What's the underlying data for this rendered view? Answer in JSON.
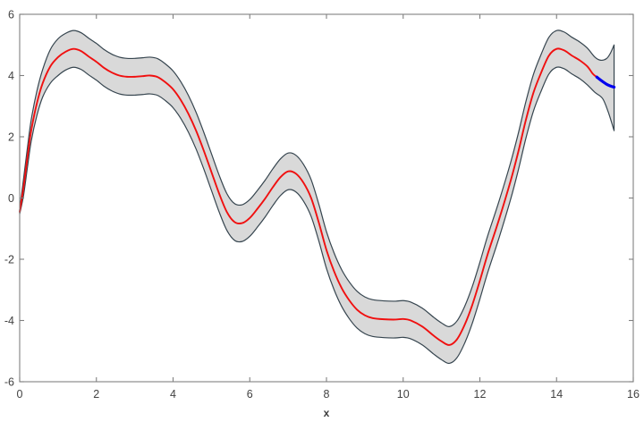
{
  "chart_data": {
    "type": "line",
    "title": "",
    "xlabel": "x",
    "ylabel": "",
    "xlim": [
      0,
      16
    ],
    "ylim": [
      -6,
      6
    ],
    "x_ticks": [
      0,
      2,
      4,
      6,
      8,
      10,
      12,
      14,
      16
    ],
    "y_ticks": [
      -6,
      -4,
      -2,
      0,
      2,
      4,
      6
    ],
    "grid": false,
    "legend": null,
    "colors": {
      "mean_line": "#f01010",
      "forecast_line": "#0000ee",
      "band_fill": "#d9d9d9",
      "band_edge": "#36454f",
      "axis_box": "#808080",
      "tick_label": "#424242",
      "background": "#ffffff"
    },
    "series": [
      {
        "name": "mean-prediction",
        "points": [
          [
            0,
            -0.45
          ],
          [
            0.1,
            0.35
          ],
          [
            0.2,
            1.3
          ],
          [
            0.3,
            2.2
          ],
          [
            0.45,
            3.1
          ],
          [
            0.6,
            3.75
          ],
          [
            0.8,
            4.3
          ],
          [
            1.0,
            4.6
          ],
          [
            1.2,
            4.78
          ],
          [
            1.4,
            4.87
          ],
          [
            1.6,
            4.8
          ],
          [
            1.8,
            4.62
          ],
          [
            2.0,
            4.45
          ],
          [
            2.2,
            4.25
          ],
          [
            2.4,
            4.1
          ],
          [
            2.6,
            4.0
          ],
          [
            2.8,
            3.96
          ],
          [
            3.0,
            3.96
          ],
          [
            3.2,
            3.98
          ],
          [
            3.4,
            4.0
          ],
          [
            3.6,
            3.95
          ],
          [
            3.8,
            3.78
          ],
          [
            4.0,
            3.55
          ],
          [
            4.2,
            3.2
          ],
          [
            4.4,
            2.75
          ],
          [
            4.6,
            2.2
          ],
          [
            4.8,
            1.55
          ],
          [
            5.0,
            0.85
          ],
          [
            5.2,
            0.15
          ],
          [
            5.4,
            -0.45
          ],
          [
            5.6,
            -0.78
          ],
          [
            5.8,
            -0.82
          ],
          [
            6.0,
            -0.65
          ],
          [
            6.2,
            -0.35
          ],
          [
            6.4,
            -0.02
          ],
          [
            6.6,
            0.35
          ],
          [
            6.8,
            0.68
          ],
          [
            7.0,
            0.87
          ],
          [
            7.2,
            0.8
          ],
          [
            7.4,
            0.5
          ],
          [
            7.6,
            0.0
          ],
          [
            7.8,
            -0.8
          ],
          [
            8.0,
            -1.7
          ],
          [
            8.2,
            -2.4
          ],
          [
            8.4,
            -2.95
          ],
          [
            8.6,
            -3.35
          ],
          [
            8.8,
            -3.65
          ],
          [
            9.0,
            -3.83
          ],
          [
            9.2,
            -3.92
          ],
          [
            9.5,
            -3.96
          ],
          [
            9.8,
            -3.97
          ],
          [
            10.0,
            -3.95
          ],
          [
            10.2,
            -4.0
          ],
          [
            10.5,
            -4.2
          ],
          [
            10.8,
            -4.5
          ],
          [
            11.0,
            -4.68
          ],
          [
            11.2,
            -4.8
          ],
          [
            11.4,
            -4.62
          ],
          [
            11.6,
            -4.15
          ],
          [
            11.8,
            -3.5
          ],
          [
            12.0,
            -2.7
          ],
          [
            12.2,
            -1.85
          ],
          [
            12.5,
            -0.7
          ],
          [
            12.8,
            0.55
          ],
          [
            13.0,
            1.5
          ],
          [
            13.2,
            2.55
          ],
          [
            13.4,
            3.45
          ],
          [
            13.6,
            4.1
          ],
          [
            13.8,
            4.65
          ],
          [
            14.0,
            4.87
          ],
          [
            14.2,
            4.82
          ],
          [
            14.4,
            4.65
          ],
          [
            14.6,
            4.5
          ],
          [
            14.8,
            4.3
          ],
          [
            14.95,
            4.05
          ],
          [
            15.05,
            3.95
          ]
        ]
      },
      {
        "name": "extrapolation",
        "points": [
          [
            15.05,
            3.95
          ],
          [
            15.15,
            3.85
          ],
          [
            15.3,
            3.72
          ],
          [
            15.4,
            3.66
          ],
          [
            15.5,
            3.62
          ]
        ]
      }
    ],
    "band": {
      "name": "confidence-interval",
      "upper": [
        [
          0,
          -0.38
        ],
        [
          0.1,
          0.62
        ],
        [
          0.2,
          1.62
        ],
        [
          0.3,
          2.55
        ],
        [
          0.45,
          3.5
        ],
        [
          0.6,
          4.2
        ],
        [
          0.8,
          4.85
        ],
        [
          1.0,
          5.2
        ],
        [
          1.2,
          5.38
        ],
        [
          1.4,
          5.47
        ],
        [
          1.6,
          5.4
        ],
        [
          1.8,
          5.22
        ],
        [
          2.0,
          5.05
        ],
        [
          2.2,
          4.85
        ],
        [
          2.4,
          4.7
        ],
        [
          2.6,
          4.6
        ],
        [
          2.8,
          4.56
        ],
        [
          3.0,
          4.56
        ],
        [
          3.2,
          4.58
        ],
        [
          3.4,
          4.6
        ],
        [
          3.6,
          4.55
        ],
        [
          3.8,
          4.38
        ],
        [
          4.0,
          4.15
        ],
        [
          4.2,
          3.8
        ],
        [
          4.4,
          3.35
        ],
        [
          4.6,
          2.8
        ],
        [
          4.8,
          2.15
        ],
        [
          5.0,
          1.45
        ],
        [
          5.2,
          0.75
        ],
        [
          5.4,
          0.15
        ],
        [
          5.6,
          -0.18
        ],
        [
          5.8,
          -0.22
        ],
        [
          6.0,
          -0.05
        ],
        [
          6.2,
          0.25
        ],
        [
          6.4,
          0.58
        ],
        [
          6.6,
          0.95
        ],
        [
          6.8,
          1.28
        ],
        [
          7.0,
          1.47
        ],
        [
          7.2,
          1.4
        ],
        [
          7.4,
          1.1
        ],
        [
          7.6,
          0.6
        ],
        [
          7.8,
          -0.2
        ],
        [
          8.0,
          -1.1
        ],
        [
          8.2,
          -1.8
        ],
        [
          8.4,
          -2.35
        ],
        [
          8.6,
          -2.75
        ],
        [
          8.8,
          -3.05
        ],
        [
          9.0,
          -3.23
        ],
        [
          9.2,
          -3.32
        ],
        [
          9.5,
          -3.36
        ],
        [
          9.8,
          -3.37
        ],
        [
          10.0,
          -3.35
        ],
        [
          10.2,
          -3.4
        ],
        [
          10.5,
          -3.6
        ],
        [
          10.8,
          -3.9
        ],
        [
          11.0,
          -4.08
        ],
        [
          11.2,
          -4.2
        ],
        [
          11.4,
          -4.02
        ],
        [
          11.6,
          -3.55
        ],
        [
          11.8,
          -2.9
        ],
        [
          12.0,
          -2.1
        ],
        [
          12.2,
          -1.25
        ],
        [
          12.5,
          -0.1
        ],
        [
          12.8,
          1.15
        ],
        [
          13.0,
          2.1
        ],
        [
          13.2,
          3.15
        ],
        [
          13.4,
          4.05
        ],
        [
          13.6,
          4.7
        ],
        [
          13.8,
          5.25
        ],
        [
          14.0,
          5.47
        ],
        [
          14.2,
          5.42
        ],
        [
          14.4,
          5.25
        ],
        [
          14.6,
          5.1
        ],
        [
          14.8,
          4.9
        ],
        [
          15.0,
          4.6
        ],
        [
          15.15,
          4.5
        ],
        [
          15.3,
          4.55
        ],
        [
          15.4,
          4.72
        ],
        [
          15.5,
          5.0
        ]
      ],
      "lower": [
        [
          0,
          -0.52
        ],
        [
          0.1,
          0.08
        ],
        [
          0.2,
          0.98
        ],
        [
          0.3,
          1.85
        ],
        [
          0.45,
          2.7
        ],
        [
          0.6,
          3.3
        ],
        [
          0.8,
          3.75
        ],
        [
          1.0,
          4.0
        ],
        [
          1.2,
          4.18
        ],
        [
          1.4,
          4.27
        ],
        [
          1.6,
          4.2
        ],
        [
          1.8,
          4.02
        ],
        [
          2.0,
          3.85
        ],
        [
          2.2,
          3.65
        ],
        [
          2.4,
          3.5
        ],
        [
          2.6,
          3.4
        ],
        [
          2.8,
          3.36
        ],
        [
          3.0,
          3.36
        ],
        [
          3.2,
          3.38
        ],
        [
          3.4,
          3.4
        ],
        [
          3.6,
          3.35
        ],
        [
          3.8,
          3.18
        ],
        [
          4.0,
          2.95
        ],
        [
          4.2,
          2.6
        ],
        [
          4.4,
          2.15
        ],
        [
          4.6,
          1.6
        ],
        [
          4.8,
          0.95
        ],
        [
          5.0,
          0.25
        ],
        [
          5.2,
          -0.45
        ],
        [
          5.4,
          -1.05
        ],
        [
          5.6,
          -1.38
        ],
        [
          5.8,
          -1.42
        ],
        [
          6.0,
          -1.25
        ],
        [
          6.2,
          -0.95
        ],
        [
          6.4,
          -0.62
        ],
        [
          6.6,
          -0.25
        ],
        [
          6.8,
          0.08
        ],
        [
          7.0,
          0.27
        ],
        [
          7.2,
          0.2
        ],
        [
          7.4,
          -0.1
        ],
        [
          7.6,
          -0.6
        ],
        [
          7.8,
          -1.4
        ],
        [
          8.0,
          -2.3
        ],
        [
          8.2,
          -3.0
        ],
        [
          8.4,
          -3.55
        ],
        [
          8.6,
          -3.95
        ],
        [
          8.8,
          -4.25
        ],
        [
          9.0,
          -4.43
        ],
        [
          9.2,
          -4.52
        ],
        [
          9.5,
          -4.56
        ],
        [
          9.8,
          -4.57
        ],
        [
          10.0,
          -4.55
        ],
        [
          10.2,
          -4.6
        ],
        [
          10.5,
          -4.8
        ],
        [
          10.8,
          -5.1
        ],
        [
          11.0,
          -5.28
        ],
        [
          11.2,
          -5.4
        ],
        [
          11.4,
          -5.22
        ],
        [
          11.6,
          -4.75
        ],
        [
          11.8,
          -4.1
        ],
        [
          12.0,
          -3.3
        ],
        [
          12.2,
          -2.45
        ],
        [
          12.5,
          -1.3
        ],
        [
          12.8,
          -0.05
        ],
        [
          13.0,
          0.9
        ],
        [
          13.2,
          1.95
        ],
        [
          13.4,
          2.85
        ],
        [
          13.6,
          3.5
        ],
        [
          13.8,
          4.05
        ],
        [
          14.0,
          4.27
        ],
        [
          14.2,
          4.22
        ],
        [
          14.4,
          4.05
        ],
        [
          14.6,
          3.9
        ],
        [
          14.8,
          3.7
        ],
        [
          15.0,
          3.45
        ],
        [
          15.2,
          3.25
        ],
        [
          15.35,
          2.8
        ],
        [
          15.5,
          2.2
        ]
      ]
    }
  }
}
